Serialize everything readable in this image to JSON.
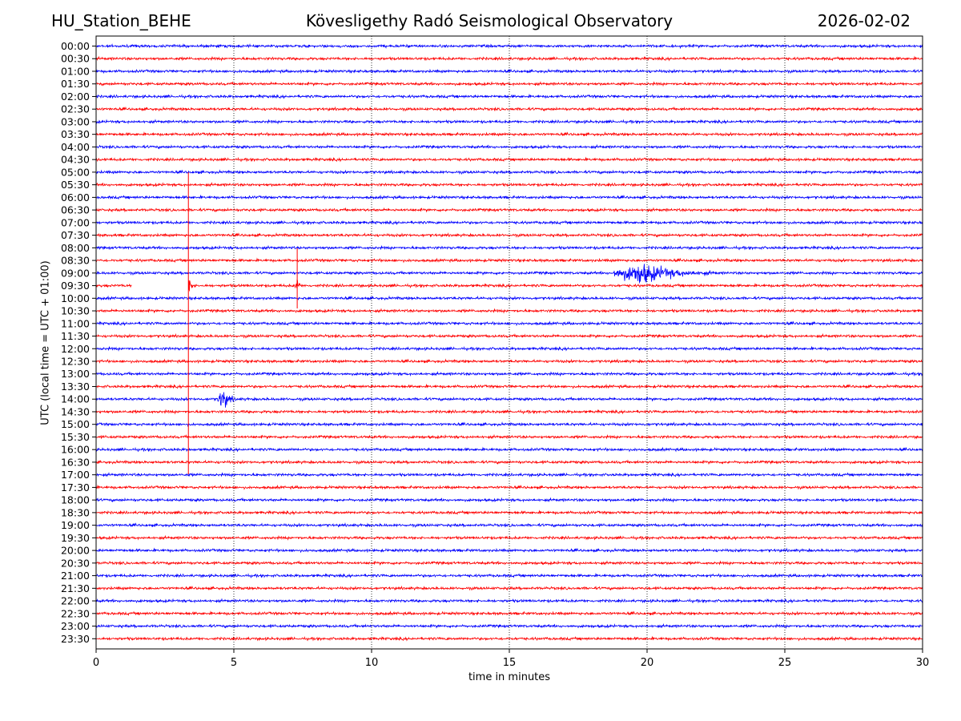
{
  "header": {
    "station": "HU_Station_BEHE",
    "observatory": "Kövesligethy Radó Seismological Observatory",
    "date": "2026-02-02"
  },
  "chart_data": {
    "type": "line",
    "title": "Kövesligethy Radó Seismological Observatory",
    "xlabel": "time in minutes",
    "ylabel": "UTC (local time = UTC + 01:00)",
    "xlim": [
      0,
      30
    ],
    "x_ticks": [
      "0",
      "5",
      "10",
      "15",
      "20",
      "25",
      "30"
    ],
    "grid": "vertical dotted lines at 5, 10, 15, 20, 25",
    "row_labels": [
      "00:00",
      "00:30",
      "01:00",
      "01:30",
      "02:00",
      "02:30",
      "03:00",
      "03:30",
      "04:00",
      "04:30",
      "05:00",
      "05:30",
      "06:00",
      "06:30",
      "07:00",
      "07:30",
      "08:00",
      "08:30",
      "09:00",
      "09:30",
      "10:00",
      "10:30",
      "11:00",
      "11:30",
      "12:00",
      "12:30",
      "13:00",
      "13:30",
      "14:00",
      "14:30",
      "15:00",
      "15:30",
      "16:00",
      "16:30",
      "17:00",
      "17:30",
      "18:00",
      "18:30",
      "19:00",
      "19:30",
      "20:00",
      "20:30",
      "21:00",
      "21:30",
      "22:00",
      "22:30",
      "23:00",
      "23:30"
    ],
    "trace_colors": [
      "#0000ff",
      "#ff0000"
    ],
    "events": [
      {
        "row": "09:00",
        "start_min": 18.8,
        "end_min": 22.5,
        "peak_min": 19.8
      },
      {
        "row": "09:30",
        "start_min": 3.35,
        "end_min": 3.6,
        "peak_min": 3.4
      },
      {
        "row": "09:30",
        "start_min": 7.2,
        "end_min": 7.4,
        "peak_min": 7.3
      },
      {
        "row": "14:00",
        "start_min": 4.4,
        "end_min": 5.1,
        "peak_min": 4.6
      }
    ],
    "gaps": [
      {
        "row": "09:30",
        "start_min": 1.3,
        "end_min": 3.35
      }
    ]
  }
}
